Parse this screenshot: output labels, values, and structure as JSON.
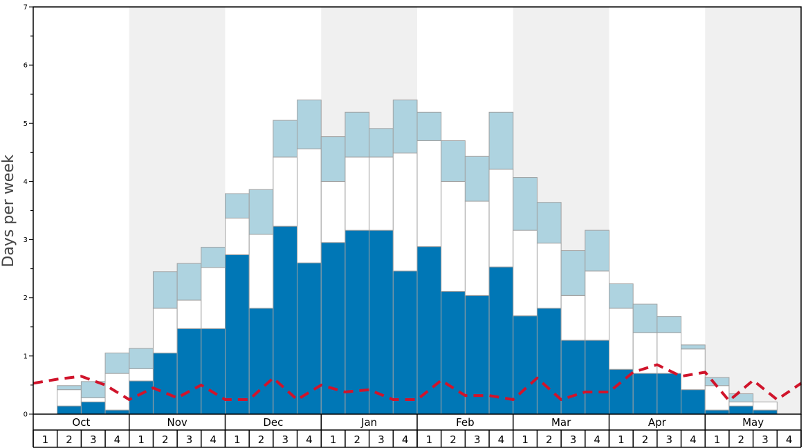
{
  "chart_data": {
    "type": "bar",
    "ylabel": "Days per week",
    "ylim": [
      0,
      7
    ],
    "y_ticks": [
      "0",
      "1",
      "2",
      "3",
      "4",
      "5",
      "6",
      "7"
    ],
    "months": [
      "Oct",
      "Nov",
      "Dec",
      "Jan",
      "Feb",
      "Mar",
      "Apr",
      "May"
    ],
    "weeks": [
      "1",
      "2",
      "3",
      "4"
    ],
    "shaded_months": [
      "Nov",
      "Jan",
      "Mar",
      "May"
    ],
    "colors": {
      "bottom": "#0077b6",
      "middle": "#ffffff",
      "top": "#aed3e0",
      "line": "#d0142b",
      "shade": "#f0f0f0"
    },
    "series": [
      {
        "values": [
          0.0,
          0.14,
          0.21,
          0.07,
          0.57,
          1.05,
          1.47,
          1.47,
          2.74,
          1.82,
          3.23,
          2.6,
          2.95,
          3.16,
          3.16,
          2.46,
          2.88,
          2.11,
          2.04,
          2.53,
          1.69,
          1.82,
          1.27,
          1.27,
          0.77,
          0.7,
          0.7,
          0.42,
          0.07,
          0.14,
          0.07,
          0.0
        ]
      },
      {
        "values": [
          0.0,
          0.28,
          0.07,
          0.63,
          0.21,
          0.77,
          0.49,
          1.05,
          0.63,
          1.27,
          1.19,
          1.96,
          1.05,
          1.26,
          1.26,
          2.03,
          1.82,
          1.89,
          1.62,
          1.68,
          1.47,
          1.12,
          0.77,
          1.19,
          1.05,
          0.7,
          0.7,
          0.7,
          0.42,
          0.07,
          0.14,
          0.0
        ]
      },
      {
        "values": [
          0.0,
          0.07,
          0.28,
          0.35,
          0.35,
          0.63,
          0.63,
          0.35,
          0.42,
          0.77,
          0.63,
          0.84,
          0.77,
          0.77,
          0.49,
          0.91,
          0.49,
          0.7,
          0.77,
          0.98,
          0.91,
          0.7,
          0.77,
          0.7,
          0.42,
          0.49,
          0.28,
          0.07,
          0.14,
          0.14,
          0.0,
          0.0
        ]
      }
    ],
    "line": {
      "values": [
        0.53,
        0.6,
        0.65,
        0.5,
        0.25,
        0.45,
        0.28,
        0.5,
        0.25,
        0.25,
        0.62,
        0.25,
        0.5,
        0.38,
        0.42,
        0.25,
        0.25,
        0.58,
        0.32,
        0.32,
        0.25,
        0.62,
        0.25,
        0.38,
        0.38,
        0.72,
        0.85,
        0.65,
        0.72,
        0.23,
        0.58,
        0.25,
        0.53
      ]
    }
  }
}
